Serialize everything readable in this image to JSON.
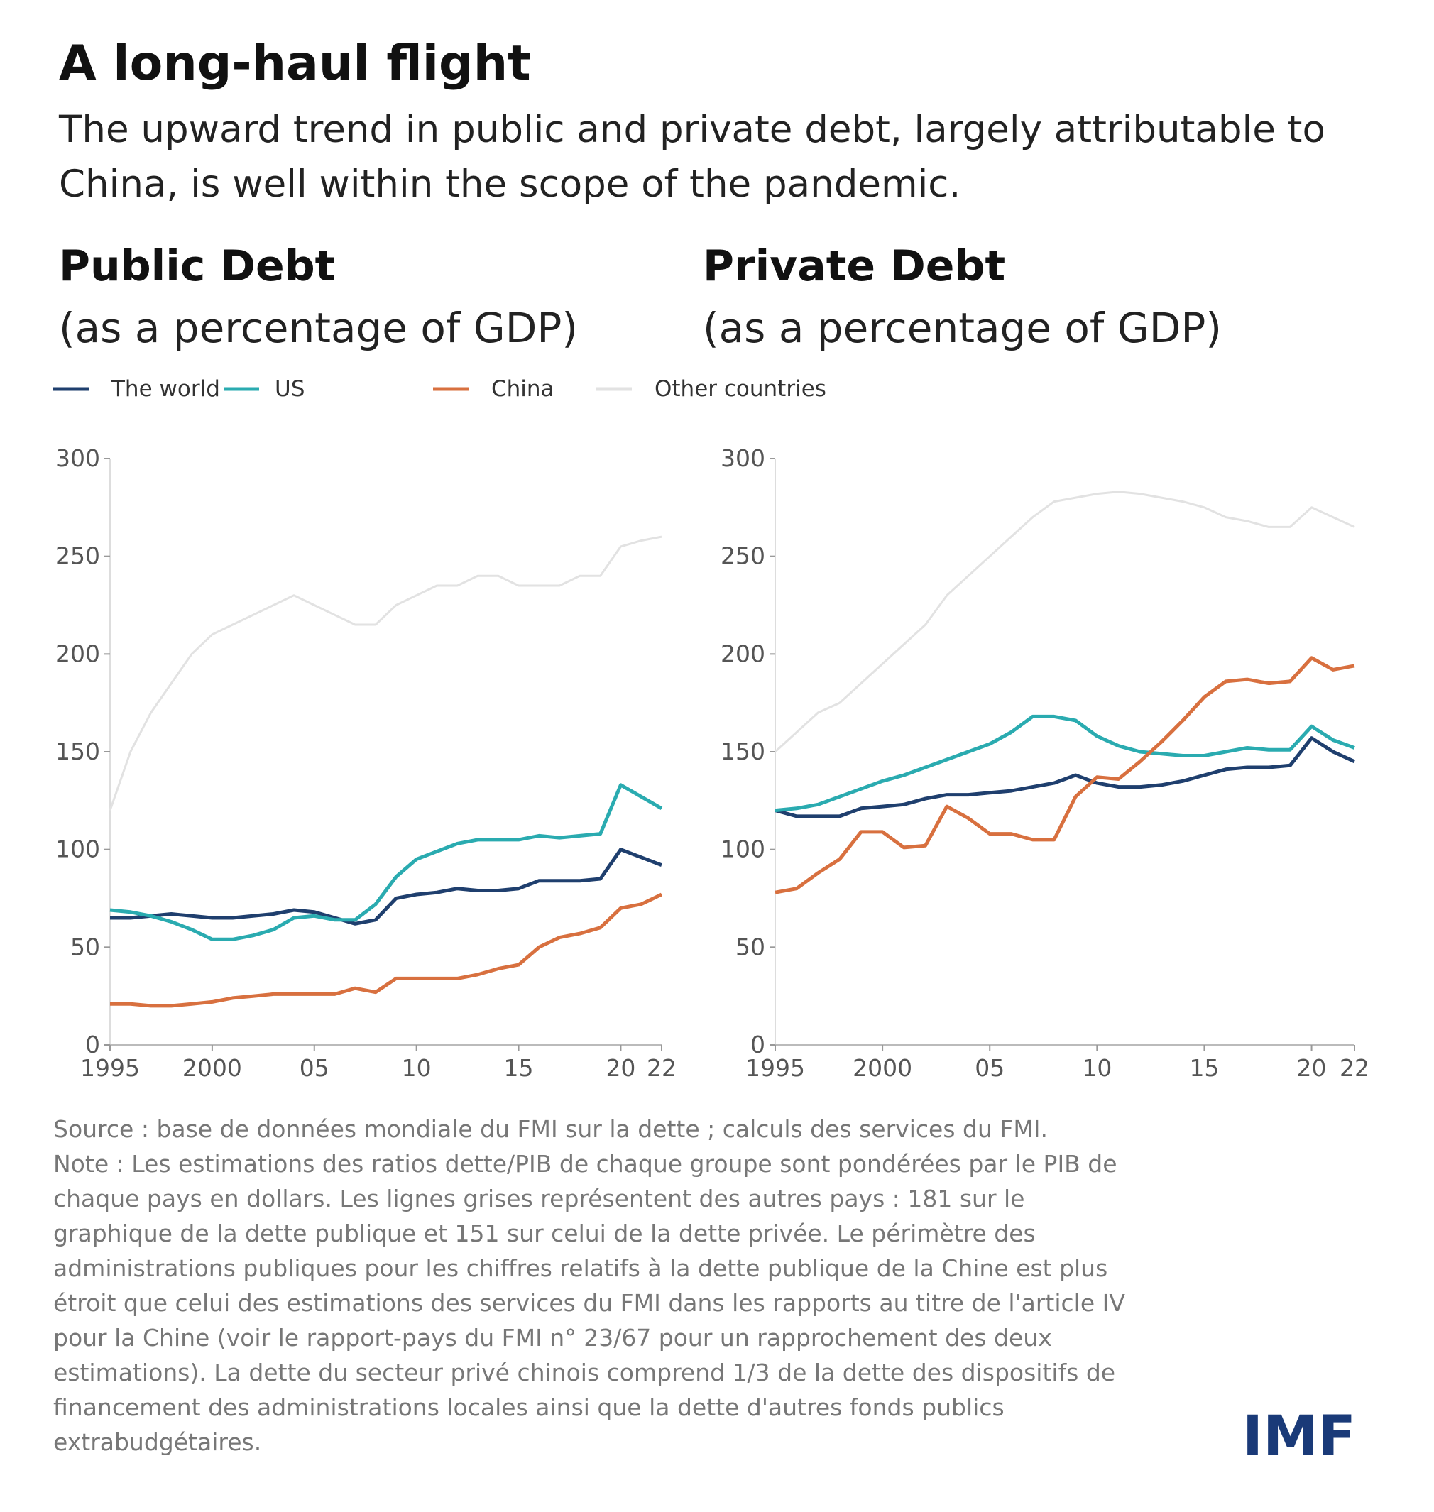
{
  "title": "A long-haul flight",
  "subtitle": [
    "The upward trend in public and private debt, largely attributable to",
    "China, is well within the scope of the pandemic."
  ],
  "note": [
    "Source : base de données mondiale du FMI sur la dette ; calculs des services du FMI.",
    "Note : Les estimations des ratios dette/PIB de chaque groupe sont pondérées par le PIB de",
    "chaque pays en dollars. Les lignes grises représentent des autres pays : 181 sur le",
    "graphique de la dette publique et 151 sur celui de la dette privée. Le périmètre des",
    "administrations publiques pour les chiffres relatifs à la dette publique de la Chine est plus",
    "étroit que celui des estimations des services du FMI dans les rapports au titre de l'article IV",
    "pour la Chine (voir le rapport-pays du FMI n° 23/67 pour un rapprochement des deux",
    "estimations). La dette du secteur privé chinois comprend 1/3 de la dette des dispositifs de",
    "financement des administrations locales ainsi que la dette d'autres fonds publics",
    "extrabudgétaires."
  ],
  "logo": "IMF",
  "chart_data": [
    {
      "type": "line",
      "title": "Public Debt",
      "subtitle": "(as a percentage of GDP)",
      "x": [
        1995,
        1996,
        1997,
        1998,
        1999,
        2000,
        2001,
        2002,
        2003,
        2004,
        2005,
        2006,
        2007,
        2008,
        2009,
        2010,
        2011,
        2012,
        2013,
        2014,
        2015,
        2016,
        2017,
        2018,
        2019,
        2020,
        2021,
        2022
      ],
      "xlim": [
        1995,
        2022
      ],
      "xticks": [
        1995,
        2000,
        {
          "value": 2005,
          "label": "05"
        },
        {
          "value": 2010,
          "label": "10"
        },
        {
          "value": 2015,
          "label": "15"
        },
        {
          "value": 2020,
          "label": "20"
        },
        {
          "value": 2022,
          "label": "22"
        }
      ],
      "ylim": [
        0,
        300
      ],
      "yticks": [
        0,
        50,
        100,
        150,
        200,
        250,
        300
      ],
      "series": [
        {
          "name": "Other countries",
          "color": "#e2e2e2",
          "values": [
            120,
            150,
            170,
            185,
            200,
            210,
            215,
            220,
            225,
            230,
            225,
            220,
            215,
            215,
            225,
            230,
            235,
            235,
            240,
            240,
            235,
            235,
            235,
            240,
            240,
            255,
            258,
            260
          ]
        },
        {
          "name": "The world",
          "color": "#1f3f6e",
          "values": [
            65,
            65,
            66,
            67,
            66,
            65,
            65,
            66,
            67,
            69,
            68,
            65,
            62,
            64,
            75,
            77,
            78,
            80,
            79,
            79,
            80,
            84,
            84,
            84,
            85,
            100,
            96,
            92
          ]
        },
        {
          "name": "US",
          "color": "#2aabb0",
          "values": [
            69,
            68,
            66,
            63,
            59,
            54,
            54,
            56,
            59,
            65,
            66,
            64,
            64,
            72,
            86,
            95,
            99,
            103,
            105,
            105,
            105,
            107,
            106,
            107,
            108,
            133,
            127,
            121
          ]
        },
        {
          "name": "China",
          "color": "#d8703f",
          "values": [
            21,
            21,
            20,
            20,
            21,
            22,
            24,
            25,
            26,
            26,
            26,
            26,
            29,
            27,
            34,
            34,
            34,
            34,
            36,
            39,
            41,
            50,
            55,
            57,
            60,
            70,
            72,
            77
          ]
        }
      ]
    },
    {
      "type": "line",
      "title": "Private Debt",
      "subtitle": "(as a percentage of GDP)",
      "x": [
        1995,
        1996,
        1997,
        1998,
        1999,
        2000,
        2001,
        2002,
        2003,
        2004,
        2005,
        2006,
        2007,
        2008,
        2009,
        2010,
        2011,
        2012,
        2013,
        2014,
        2015,
        2016,
        2017,
        2018,
        2019,
        2020,
        2021,
        2022
      ],
      "xlim": [
        1995,
        2022
      ],
      "xticks": [
        1995,
        2000,
        {
          "value": 2005,
          "label": "05"
        },
        {
          "value": 2010,
          "label": "10"
        },
        {
          "value": 2015,
          "label": "15"
        },
        {
          "value": 2020,
          "label": "20"
        },
        {
          "value": 2022,
          "label": "22"
        }
      ],
      "ylim": [
        0,
        300
      ],
      "yticks": [
        0,
        50,
        100,
        150,
        200,
        250,
        300
      ],
      "series": [
        {
          "color": "#e2e2e2",
          "values": [
            150,
            160,
            170,
            175,
            185,
            195,
            205,
            215,
            230,
            240,
            250,
            260,
            270,
            278,
            280,
            282,
            283,
            282,
            280,
            278,
            275,
            270,
            268,
            265,
            265,
            275,
            270,
            265
          ]
        },
        {
          "color": "#1f3f6e",
          "values": [
            120,
            117,
            117,
            117,
            121,
            122,
            123,
            126,
            128,
            128,
            129,
            130,
            132,
            134,
            138,
            134,
            132,
            132,
            133,
            135,
            138,
            141,
            142,
            142,
            143,
            157,
            150,
            145
          ]
        },
        {
          "color": "#2aabb0",
          "values": [
            120,
            121,
            123,
            127,
            131,
            135,
            138,
            142,
            146,
            150,
            154,
            160,
            168,
            168,
            166,
            158,
            153,
            150,
            149,
            148,
            148,
            150,
            152,
            151,
            151,
            163,
            156,
            152
          ]
        },
        {
          "color": "#d8703f",
          "values": [
            78,
            80,
            88,
            95,
            109,
            109,
            101,
            102,
            122,
            116,
            108,
            108,
            105,
            105,
            127,
            137,
            136,
            145,
            155,
            166,
            178,
            186,
            187,
            185,
            186,
            198,
            192,
            194
          ]
        }
      ]
    }
  ]
}
